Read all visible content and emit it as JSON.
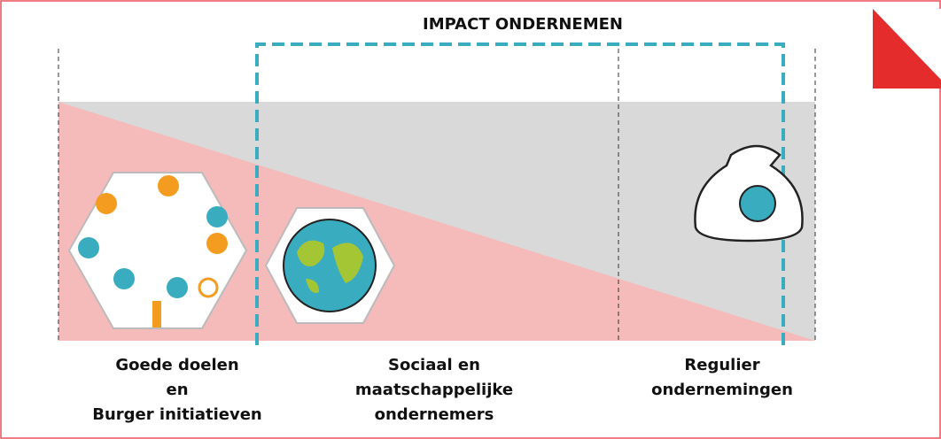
{
  "header": {
    "title": "IMPACT ONDERNEMEN"
  },
  "columns": [
    {
      "lines": [
        "Goede doelen",
        "en",
        "Burger initiatieven"
      ]
    },
    {
      "lines": [
        "Sociaal en",
        "maatschappelijke",
        "ondernemers"
      ]
    },
    {
      "lines": [
        "Regulier",
        "ondernemingen"
      ]
    }
  ]
}
